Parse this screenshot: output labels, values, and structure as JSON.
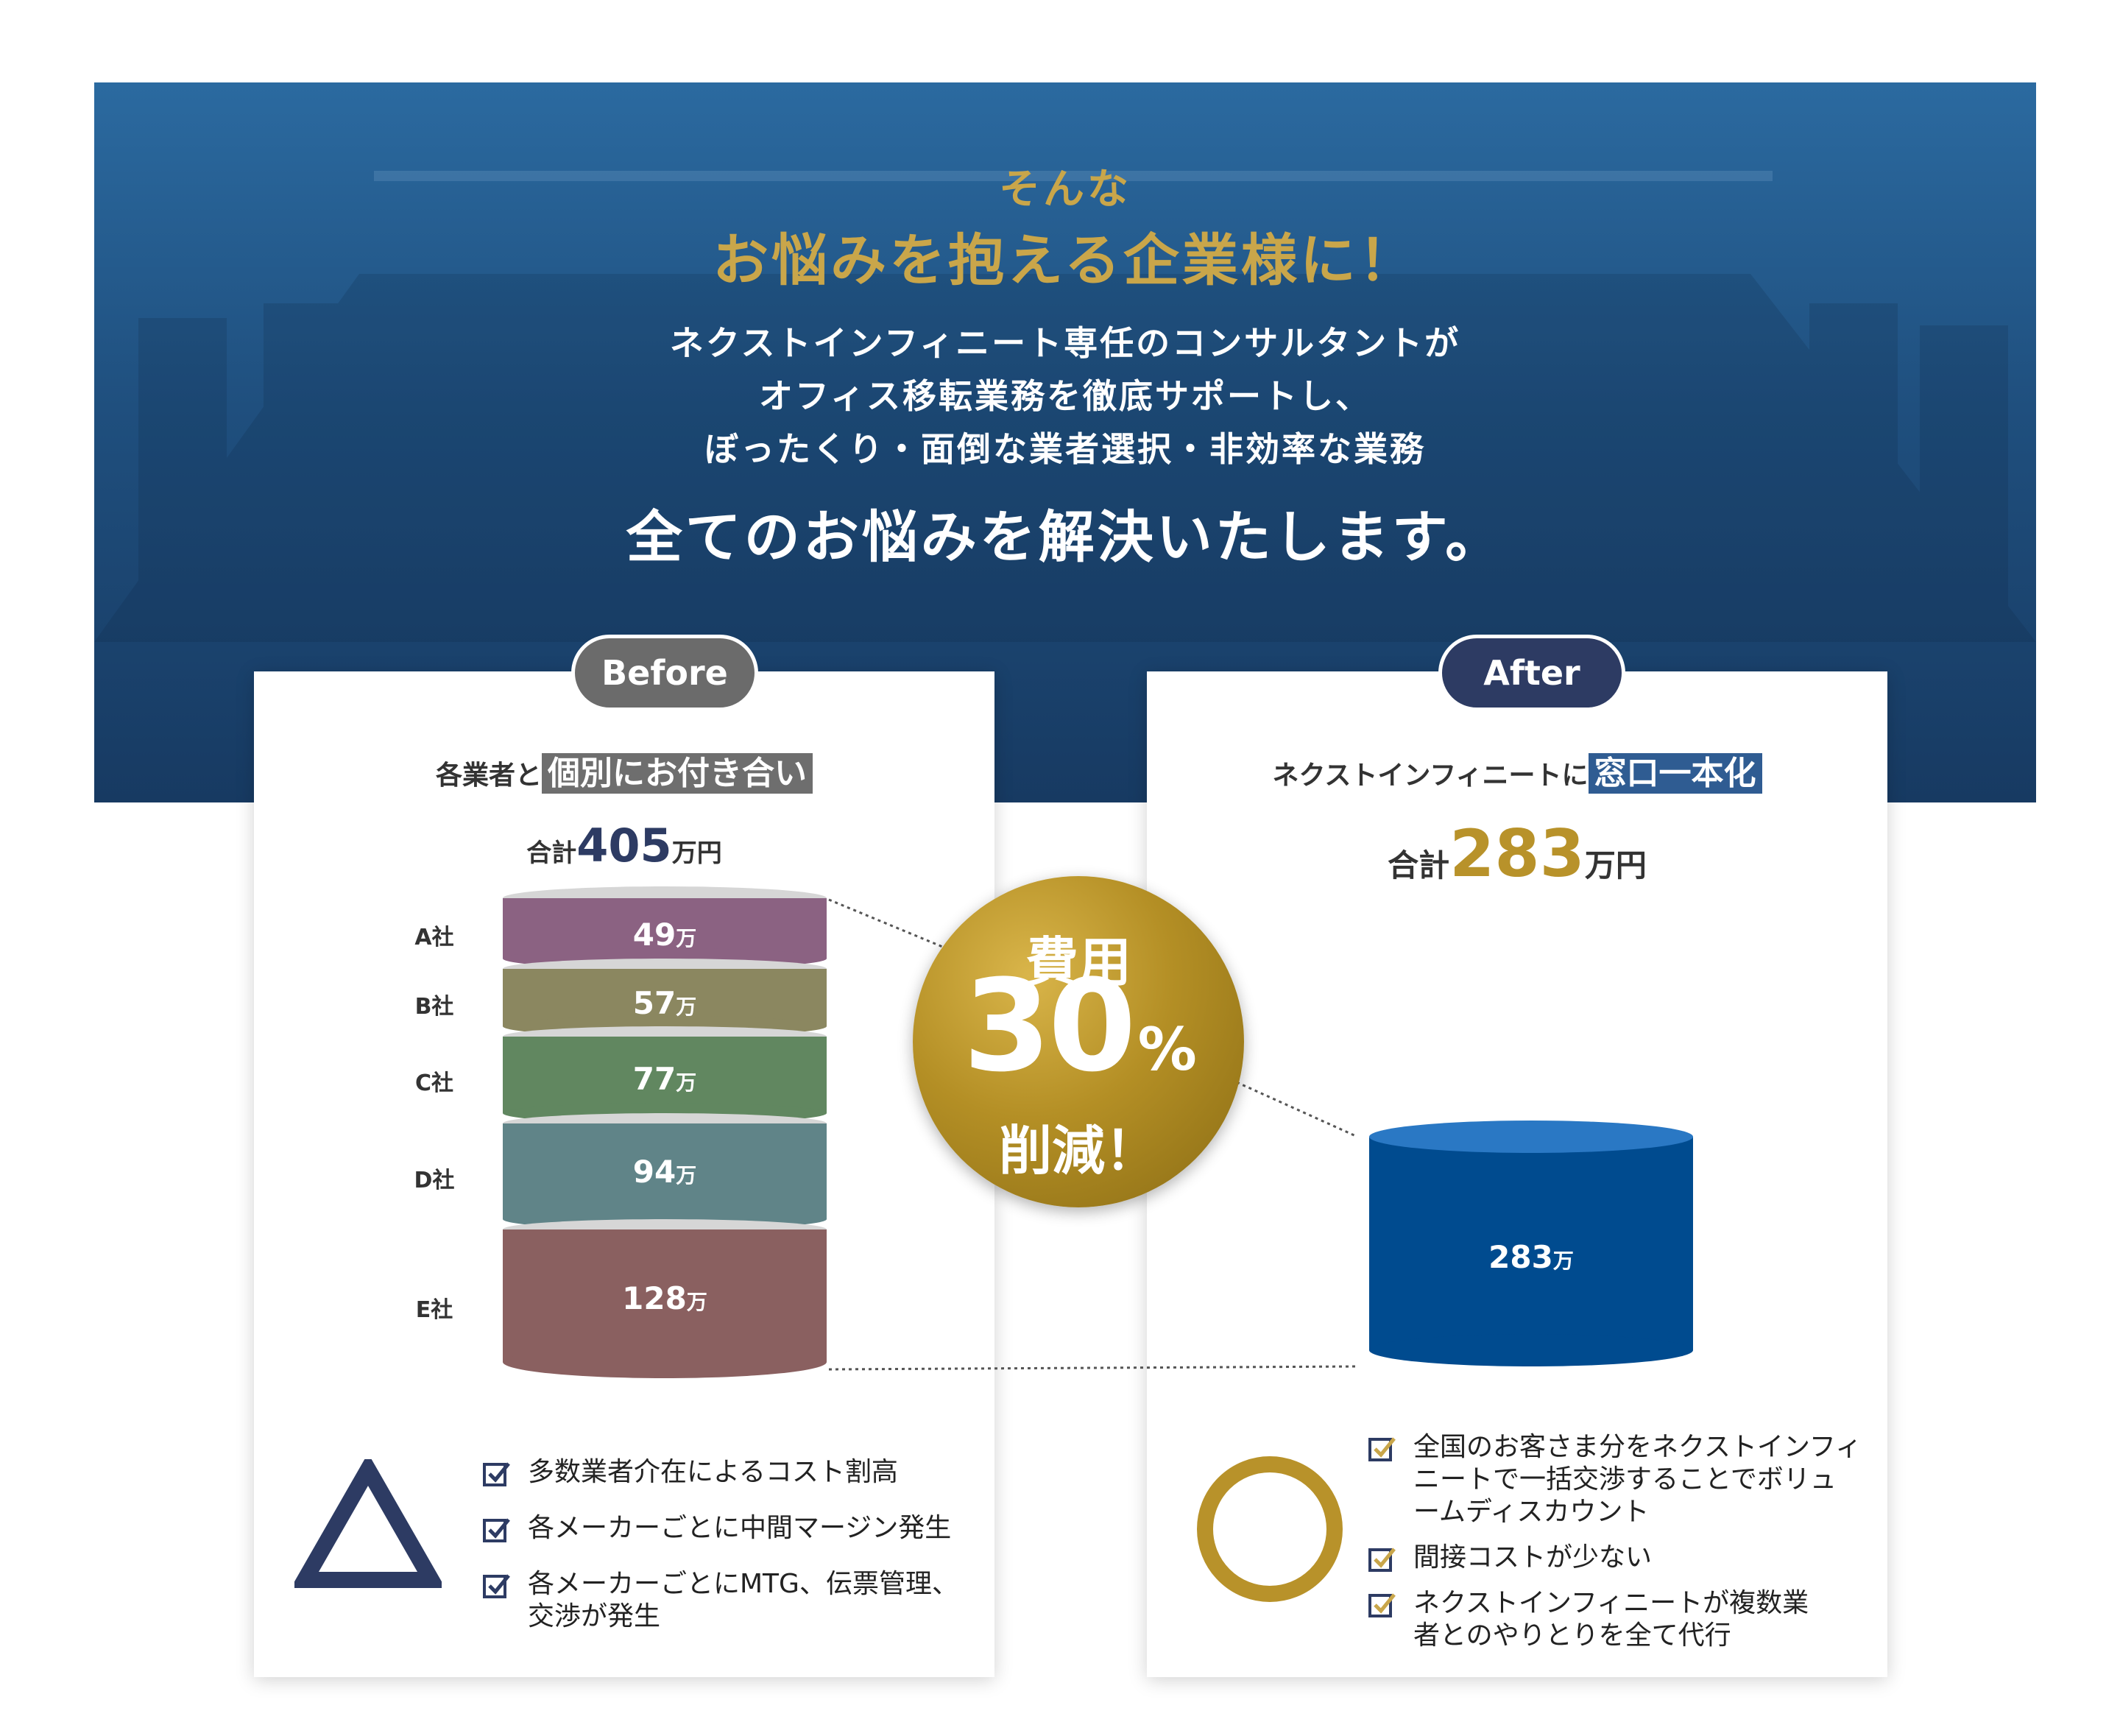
{
  "hero": {
    "pre": "そんな",
    "headline": "お悩みを抱える企業様に！",
    "lines": [
      "ネクストインフィニート専任のコンサルタントが",
      "オフィス移転業務を徹底サポートし、",
      "ぼったくり・面倒な業者選択・非効率な業務"
    ],
    "big": "全てのお悩みを解決いたします。"
  },
  "before": {
    "pill": "Before",
    "subtitle_pre": "各業者と",
    "subtitle_hl": "個別にお付き合い",
    "total_pre": "合計",
    "total_num": "405",
    "total_unit": "万円",
    "segments": [
      {
        "company": "A社",
        "value": "49",
        "unit": "万",
        "color": "#8b6282"
      },
      {
        "company": "B社",
        "value": "57",
        "unit": "万",
        "color": "#8b8760"
      },
      {
        "company": "C社",
        "value": "77",
        "unit": "万",
        "color": "#618760"
      },
      {
        "company": "D社",
        "value": "94",
        "unit": "万",
        "color": "#608488"
      },
      {
        "company": "E社",
        "value": "128",
        "unit": "万",
        "color": "#8a6060"
      }
    ],
    "mark": "triangle",
    "points": [
      "多数業者介在によるコスト割高",
      "各メーカーごとに中間マージン発生",
      "各メーカーごとにMTG、伝票管理、交渉が発生"
    ]
  },
  "after": {
    "pill": "After",
    "subtitle_pre": "ネクストインフィニートに",
    "subtitle_hl": "窓口一本化",
    "total_pre": "合計",
    "total_num": "283",
    "total_unit": "万円",
    "cylinder": {
      "value": "283",
      "unit": "万",
      "color": "#004b8f"
    },
    "mark": "circle",
    "points": [
      "全国のお客さま分をネクストインフィニートで一括交渉することでボリュームディスカウント",
      "間接コストが少ない",
      "ネクストインフィニートが複数業者とのやりとりを全て代行"
    ]
  },
  "badge": {
    "line1": "費用",
    "number": "30",
    "percent": "%",
    "line3": "削減！"
  },
  "colors": {
    "gold": "#b8922a",
    "navy": "#2d3b63",
    "check": "#c9a64a"
  },
  "icons": [
    "check-icon",
    "triangle-icon",
    "circle-icon"
  ]
}
